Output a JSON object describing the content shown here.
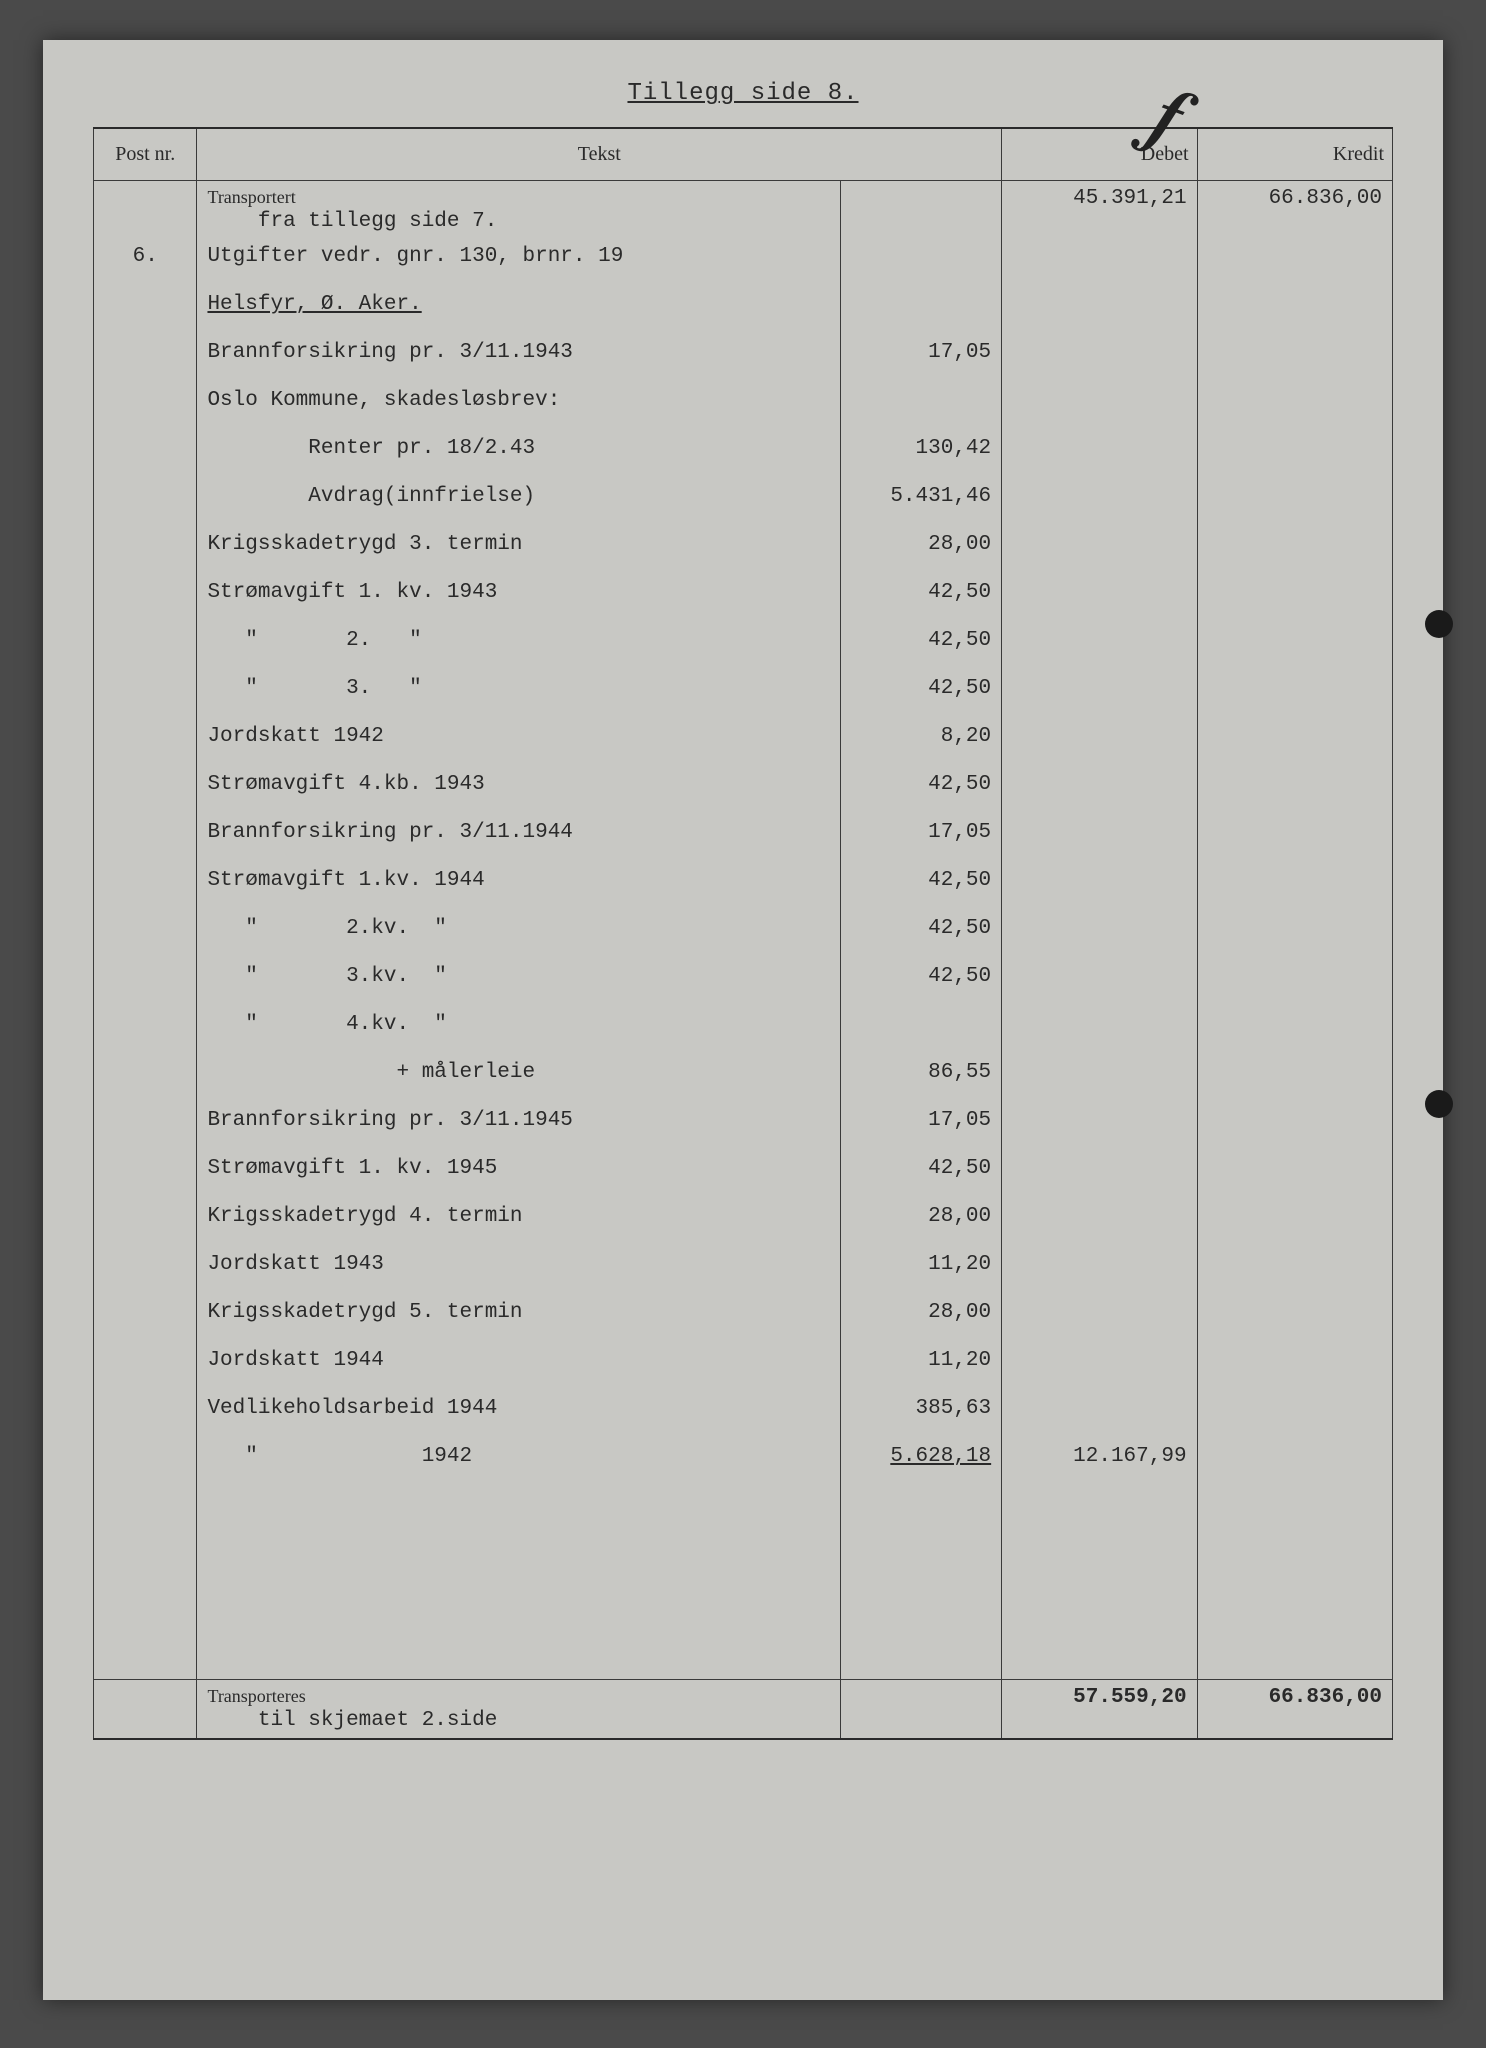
{
  "title": "Tillegg side 8.",
  "headers": {
    "post": "Post nr.",
    "tekst": "Tekst",
    "debet": "Debet",
    "kredit": "Kredit"
  },
  "transport_top": {
    "label": "Transportert",
    "note": "fra tillegg side 7.",
    "debet": "45.391,21",
    "kredit": "66.836,00"
  },
  "rows": [
    {
      "post": "6.",
      "tekst": "Utgifter vedr. gnr. 130, brnr. 19",
      "sub": "",
      "debet": "",
      "kredit": ""
    },
    {
      "post": "",
      "tekst": "Helsfyr, Ø. Aker.",
      "underline": true,
      "sub": "",
      "debet": "",
      "kredit": ""
    },
    {
      "post": "",
      "tekst": "Brannforsikring pr. 3/11.1943",
      "sub": "17,05",
      "debet": "",
      "kredit": ""
    },
    {
      "post": "",
      "tekst": "Oslo Kommune, skadesløsbrev:",
      "sub": "",
      "debet": "",
      "kredit": ""
    },
    {
      "post": "",
      "tekst": "        Renter pr. 18/2.43",
      "sub": "130,42",
      "debet": "",
      "kredit": ""
    },
    {
      "post": "",
      "tekst": "        Avdrag(innfrielse)",
      "sub": "5.431,46",
      "debet": "",
      "kredit": ""
    },
    {
      "post": "",
      "tekst": "Krigsskadetrygd 3. termin",
      "sub": "28,00",
      "debet": "",
      "kredit": ""
    },
    {
      "post": "",
      "tekst": "Strømavgift 1. kv. 1943",
      "sub": "42,50",
      "debet": "",
      "kredit": ""
    },
    {
      "post": "",
      "tekst": "   \"       2.   \"",
      "sub": "42,50",
      "debet": "",
      "kredit": ""
    },
    {
      "post": "",
      "tekst": "   \"       3.   \"",
      "sub": "42,50",
      "debet": "",
      "kredit": ""
    },
    {
      "post": "",
      "tekst": "Jordskatt 1942",
      "sub": "8,20",
      "debet": "",
      "kredit": ""
    },
    {
      "post": "",
      "tekst": "Strømavgift 4.kb. 1943",
      "sub": "42,50",
      "debet": "",
      "kredit": ""
    },
    {
      "post": "",
      "tekst": "Brannforsikring pr. 3/11.1944",
      "sub": "17,05",
      "debet": "",
      "kredit": ""
    },
    {
      "post": "",
      "tekst": "Strømavgift 1.kv. 1944",
      "sub": "42,50",
      "debet": "",
      "kredit": ""
    },
    {
      "post": "",
      "tekst": "   \"       2.kv.  \"",
      "sub": "42,50",
      "debet": "",
      "kredit": ""
    },
    {
      "post": "",
      "tekst": "   \"       3.kv.  \"",
      "sub": "42,50",
      "debet": "",
      "kredit": ""
    },
    {
      "post": "",
      "tekst": "   \"       4.kv.  \"",
      "sub": "",
      "debet": "",
      "kredit": ""
    },
    {
      "post": "",
      "tekst": "               + målerleie",
      "sub": "86,55",
      "debet": "",
      "kredit": ""
    },
    {
      "post": "",
      "tekst": "Brannforsikring pr. 3/11.1945",
      "sub": "17,05",
      "debet": "",
      "kredit": ""
    },
    {
      "post": "",
      "tekst": "Strømavgift 1. kv. 1945",
      "sub": "42,50",
      "debet": "",
      "kredit": ""
    },
    {
      "post": "",
      "tekst": "Krigsskadetrygd 4. termin",
      "sub": "28,00",
      "debet": "",
      "kredit": ""
    },
    {
      "post": "",
      "tekst": "Jordskatt 1943",
      "sub": "11,20",
      "debet": "",
      "kredit": ""
    },
    {
      "post": "",
      "tekst": "Krigsskadetrygd 5. termin",
      "sub": "28,00",
      "debet": "",
      "kredit": ""
    },
    {
      "post": "",
      "tekst": "Jordskatt 1944",
      "sub": "11,20",
      "debet": "",
      "kredit": ""
    },
    {
      "post": "",
      "tekst": "Vedlikeholdsarbeid 1944",
      "sub": "385,63",
      "debet": "",
      "kredit": ""
    },
    {
      "post": "",
      "tekst": "   \"             1942",
      "sub": "5.628,18",
      "debet": "12.167,99",
      "kredit": "",
      "sum": true
    },
    {
      "post": "",
      "tekst": "",
      "sub": "",
      "debet": "",
      "kredit": ""
    },
    {
      "post": "",
      "tekst": "",
      "sub": "",
      "debet": "",
      "kredit": ""
    },
    {
      "post": "",
      "tekst": "",
      "sub": "",
      "debet": "",
      "kredit": ""
    },
    {
      "post": "",
      "tekst": "",
      "sub": "",
      "debet": "",
      "kredit": ""
    }
  ],
  "transport_bottom": {
    "label": "Transporteres",
    "note": "til skjemaet 2.side",
    "debet": "57.559,20",
    "kredit": "66.836,00"
  },
  "colors": {
    "paper": "#c8c8c4",
    "ink": "#2a2a2a",
    "border": "#3a3a3a"
  }
}
